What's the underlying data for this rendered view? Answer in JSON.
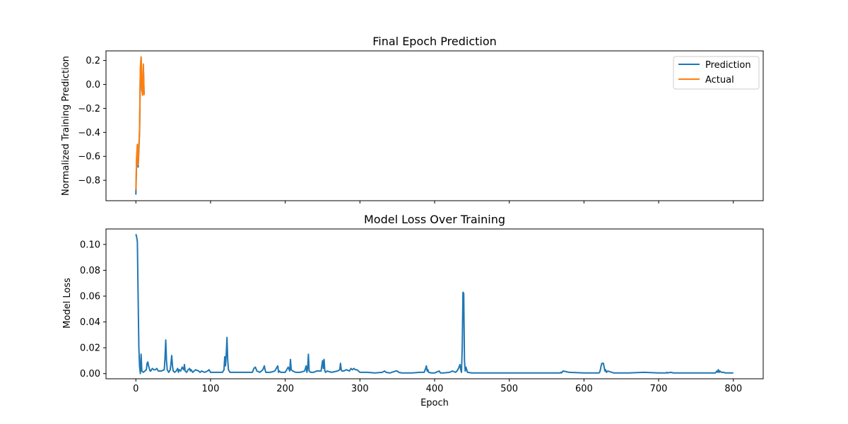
{
  "chart_data": [
    {
      "type": "line",
      "title": "Final Epoch Prediction",
      "xlabel": "",
      "ylabel": "Normalized Training Prediction",
      "xlim": [
        -40,
        840
      ],
      "ylim": [
        -0.97,
        0.28
      ],
      "xticks": [
        0,
        100,
        200,
        300,
        400,
        500,
        600,
        700,
        800
      ],
      "xtick_labels_visible": false,
      "yticks": [
        0.2,
        0.0,
        -0.2,
        -0.4,
        -0.6,
        -0.8
      ],
      "ytick_labels": [
        "0.2",
        "0.0",
        "−0.2",
        "−0.4",
        "−0.6",
        "−0.8"
      ],
      "legend": {
        "position": "top-right",
        "entries": [
          "Prediction",
          "Actual"
        ]
      },
      "grid": false,
      "series": [
        {
          "name": "Prediction",
          "color": "#1f77b4",
          "x": [
            0,
            1,
            2,
            3,
            4,
            5,
            6,
            7,
            8,
            9,
            10,
            11
          ],
          "y": [
            -0.92,
            -0.62,
            -0.53,
            -0.69,
            -0.55,
            -0.38,
            0.12,
            0.22,
            -0.05,
            -0.07,
            0.15,
            -0.08
          ]
        },
        {
          "name": "Actual",
          "color": "#ff7f0e",
          "x": [
            0,
            1,
            2,
            3,
            4,
            5,
            6,
            7,
            8,
            9,
            10,
            11
          ],
          "y": [
            -0.88,
            -0.6,
            -0.5,
            -0.67,
            -0.52,
            -0.36,
            0.14,
            0.23,
            -0.04,
            -0.09,
            0.17,
            -0.09
          ]
        }
      ]
    },
    {
      "type": "line",
      "title": "Model Loss Over Training",
      "xlabel": "Epoch",
      "ylabel": "Model Loss",
      "xlim": [
        -40,
        840
      ],
      "ylim": [
        -0.004,
        0.112
      ],
      "xticks": [
        0,
        100,
        200,
        300,
        400,
        500,
        600,
        700,
        800
      ],
      "xtick_labels": [
        "0",
        "100",
        "200",
        "300",
        "400",
        "500",
        "600",
        "700",
        "800"
      ],
      "yticks": [
        0.0,
        0.02,
        0.04,
        0.06,
        0.08,
        0.1
      ],
      "ytick_labels": [
        "0.00",
        "0.02",
        "0.04",
        "0.06",
        "0.08",
        "0.10"
      ],
      "grid": false,
      "series": [
        {
          "color": "#1f77b4",
          "x": [
            0,
            1,
            2,
            3,
            4,
            5,
            6,
            7,
            8,
            10,
            12,
            14,
            15,
            16,
            17,
            18,
            19,
            20,
            22,
            24,
            26,
            28,
            30,
            34,
            38,
            39,
            40,
            41,
            42,
            44,
            46,
            47,
            48,
            49,
            50,
            52,
            54,
            56,
            57,
            58,
            60,
            62,
            64,
            65,
            66,
            68,
            70,
            72,
            73,
            74,
            76,
            80,
            84,
            86,
            88,
            92,
            96,
            98,
            100,
            104,
            110,
            116,
            118,
            119,
            120,
            121,
            122,
            123,
            124,
            126,
            130,
            140,
            150,
            156,
            158,
            160,
            162,
            166,
            170,
            172,
            173,
            174,
            176,
            180,
            186,
            190,
            191,
            192,
            194,
            200,
            204,
            206,
            207,
            208,
            210,
            214,
            220,
            226,
            228,
            229,
            230,
            231,
            232,
            234,
            238,
            242,
            248,
            250,
            251,
            252,
            253,
            254,
            256,
            262,
            270,
            273,
            274,
            275,
            276,
            278,
            282,
            286,
            288,
            290,
            292,
            294,
            296,
            300,
            310,
            320,
            330,
            333,
            335,
            340,
            348,
            350,
            352,
            356,
            360,
            370,
            380,
            386,
            388,
            389,
            390,
            391,
            392,
            396,
            400,
            406,
            408,
            412,
            420,
            424,
            428,
            430,
            432,
            434,
            435,
            436,
            437,
            438,
            439,
            440,
            441,
            442,
            444,
            450,
            460,
            480,
            500,
            520,
            540,
            560,
            566,
            568,
            569,
            570,
            572,
            580,
            600,
            610,
            618,
            620,
            621,
            622,
            623,
            624,
            625,
            626,
            627,
            628,
            629,
            630,
            632,
            640,
            660,
            680,
            700,
            710,
            711,
            712,
            716,
            720,
            740,
            760,
            770,
            776,
            778,
            779,
            780,
            781,
            782,
            784,
            786,
            790,
            796,
            800
          ],
          "y": [
            0.108,
            0.106,
            0.102,
            0.06,
            0.02,
            0.005,
            0.0,
            0.015,
            0.002,
            0.001,
            0.002,
            0.003,
            0.008,
            0.009,
            0.006,
            0.004,
            0.002,
            0.002,
            0.004,
            0.003,
            0.003,
            0.004,
            0.002,
            0.002,
            0.003,
            0.012,
            0.026,
            0.01,
            0.003,
            0.001,
            0.003,
            0.008,
            0.014,
            0.006,
            0.002,
            0.001,
            0.002,
            0.004,
            0.001,
            0.003,
            0.002,
            0.005,
            0.003,
            0.007,
            0.002,
            0.001,
            0.003,
            0.004,
            0.002,
            0.003,
            0.001,
            0.003,
            0.002,
            0.001,
            0.002,
            0.001,
            0.002,
            0.003,
            0.001,
            0.001,
            0.001,
            0.001,
            0.003,
            0.013,
            0.006,
            0.015,
            0.028,
            0.01,
            0.003,
            0.001,
            0.001,
            0.001,
            0.001,
            0.001,
            0.004,
            0.005,
            0.002,
            0.001,
            0.003,
            0.006,
            0.003,
            0.001,
            0.001,
            0.001,
            0.002,
            0.006,
            0.001,
            0.002,
            0.001,
            0.001,
            0.005,
            0.002,
            0.011,
            0.003,
            0.002,
            0.001,
            0.001,
            0.002,
            0.006,
            0.001,
            0.004,
            0.015,
            0.002,
            0.001,
            0.001,
            0.002,
            0.002,
            0.01,
            0.004,
            0.011,
            0.002,
            0.001,
            0.002,
            0.001,
            0.002,
            0.003,
            0.008,
            0.003,
            0.002,
            0.002,
            0.003,
            0.002,
            0.004,
            0.003,
            0.004,
            0.003,
            0.003,
            0.001,
            0.001,
            0.0005,
            0.001,
            0.002,
            0.001,
            0.0005,
            0.002,
            0.002,
            0.001,
            0.0005,
            0.0005,
            0.0005,
            0.001,
            0.001,
            0.004,
            0.006,
            0.002,
            0.003,
            0.001,
            0.0005,
            0.0005,
            0.002,
            0.0005,
            0.0005,
            0.001,
            0.002,
            0.001,
            0.002,
            0.004,
            0.007,
            0.003,
            0.001,
            0.02,
            0.063,
            0.062,
            0.01,
            0.002,
            0.005,
            0.001,
            0.0005,
            0.0005,
            0.0005,
            0.0005,
            0.0005,
            0.0005,
            0.0005,
            0.0005,
            0.0005,
            0.001,
            0.0005,
            0.002,
            0.001,
            0.0005,
            0.0005,
            0.0005,
            0.0005,
            0.001,
            0.003,
            0.006,
            0.008,
            0.008,
            0.008,
            0.005,
            0.002,
            0.003,
            0.001,
            0.002,
            0.0005,
            0.0005,
            0.001,
            0.0005,
            0.0005,
            0.001,
            0.0005,
            0.001,
            0.0005,
            0.0005,
            0.0005,
            0.0005,
            0.0005,
            0.002,
            0.001,
            0.003,
            0.001,
            0.002,
            0.001,
            0.001,
            0.0005,
            0.0005,
            0.0005
          ]
        }
      ]
    }
  ]
}
